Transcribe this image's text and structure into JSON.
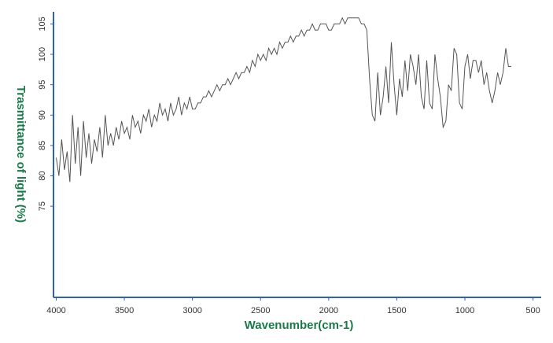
{
  "chart_data": {
    "type": "line",
    "xlabel": "Wavenumber(cm-1)",
    "ylabel": "Trasmittance of light (%)",
    "xlim": [
      4020,
      440
    ],
    "ylim": [
      60,
      107
    ],
    "xticks": [
      4000,
      3500,
      3000,
      2500,
      2000,
      1500,
      1000,
      500
    ],
    "yticks": [
      75,
      80,
      85,
      90,
      95,
      100,
      105
    ],
    "axis_color": "#2e5fbf",
    "x": [
      4000,
      3980,
      3960,
      3940,
      3920,
      3900,
      3880,
      3860,
      3840,
      3820,
      3800,
      3780,
      3760,
      3740,
      3720,
      3700,
      3680,
      3660,
      3640,
      3620,
      3600,
      3580,
      3560,
      3540,
      3520,
      3500,
      3480,
      3460,
      3440,
      3420,
      3400,
      3380,
      3360,
      3340,
      3320,
      3300,
      3280,
      3260,
      3240,
      3220,
      3200,
      3180,
      3160,
      3140,
      3120,
      3100,
      3080,
      3060,
      3040,
      3020,
      3000,
      2980,
      2960,
      2940,
      2920,
      2900,
      2880,
      2860,
      2840,
      2820,
      2800,
      2780,
      2760,
      2740,
      2720,
      2700,
      2680,
      2660,
      2640,
      2620,
      2600,
      2580,
      2560,
      2540,
      2520,
      2500,
      2480,
      2460,
      2440,
      2420,
      2400,
      2380,
      2360,
      2340,
      2320,
      2300,
      2280,
      2260,
      2240,
      2220,
      2200,
      2180,
      2160,
      2140,
      2120,
      2100,
      2080,
      2060,
      2040,
      2020,
      2000,
      1980,
      1960,
      1940,
      1920,
      1900,
      1880,
      1860,
      1840,
      1820,
      1800,
      1780,
      1760,
      1740,
      1720,
      1700,
      1680,
      1660,
      1640,
      1620,
      1600,
      1580,
      1560,
      1540,
      1520,
      1500,
      1480,
      1460,
      1440,
      1420,
      1400,
      1380,
      1360,
      1340,
      1320,
      1300,
      1280,
      1260,
      1240,
      1220,
      1200,
      1180,
      1160,
      1140,
      1120,
      1100,
      1080,
      1060,
      1040,
      1020,
      1000,
      980,
      960,
      940,
      920,
      900,
      880,
      860,
      840,
      820,
      800,
      780,
      760,
      740,
      720,
      700,
      680,
      660
    ],
    "series": [
      {
        "color": "#555555",
        "values": [
          83,
          80,
          86,
          81,
          84,
          79,
          90,
          82,
          88,
          80,
          89,
          83,
          87,
          82,
          86,
          84,
          88,
          83,
          90,
          85,
          87,
          85,
          88,
          86,
          89,
          87,
          88,
          86,
          90,
          88,
          89,
          87,
          90,
          89,
          91,
          88,
          90,
          89,
          92,
          90,
          91,
          89,
          92,
          90,
          91,
          93,
          90,
          92,
          91,
          93,
          91,
          91,
          92,
          92,
          93,
          93,
          94,
          93,
          94,
          95,
          94,
          95,
          95,
          96,
          95,
          96,
          97,
          96,
          97,
          97,
          98,
          97,
          99,
          98,
          100,
          99,
          100,
          99,
          101,
          100,
          101,
          100,
          102,
          101,
          102,
          102,
          103,
          102,
          103,
          103,
          104,
          103,
          104,
          104,
          105,
          104,
          104,
          105,
          105,
          105,
          104,
          104,
          105,
          105,
          105,
          106,
          105,
          106,
          106,
          106,
          106,
          106,
          105,
          105,
          104,
          96,
          90,
          89,
          97,
          90,
          93,
          98,
          92,
          102,
          95,
          90,
          96,
          93,
          99,
          94,
          100,
          98,
          95,
          100,
          93,
          91,
          99,
          92,
          91,
          100,
          96,
          93,
          88,
          89,
          95,
          94,
          101,
          100,
          92,
          91,
          98,
          100,
          96,
          99,
          99,
          97,
          99,
          95,
          97,
          94,
          92,
          94,
          97,
          95,
          97,
          101,
          98,
          98
        ]
      }
    ]
  }
}
